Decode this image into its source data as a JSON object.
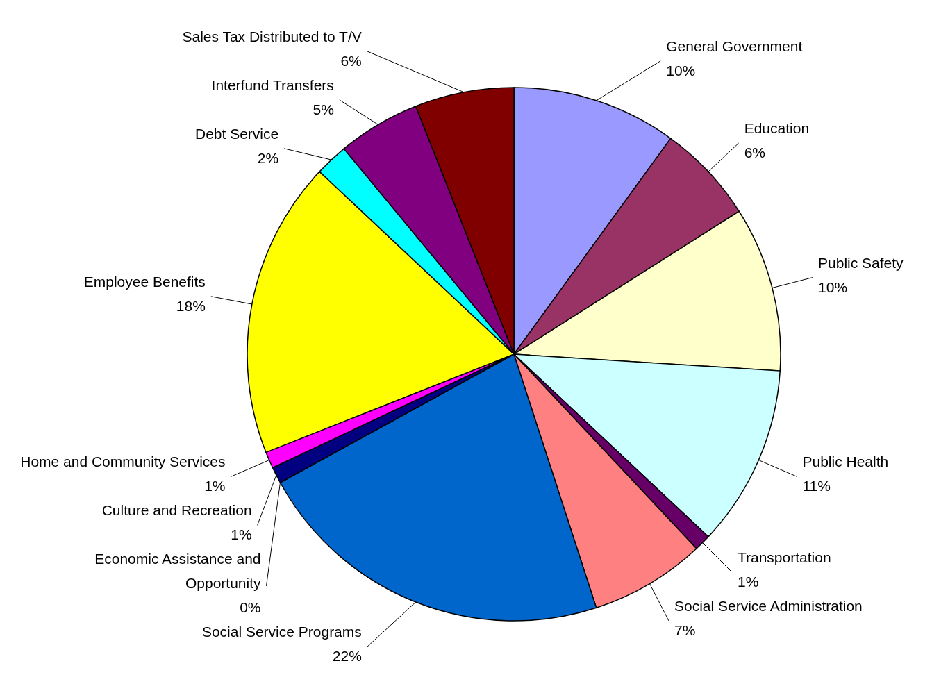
{
  "chart_data": {
    "type": "pie",
    "categories": [
      "General Government",
      "Education",
      "Public Safety",
      "Public Health",
      "Transportation",
      "Social Service Administration",
      "Social Service Programs",
      "Economic Assistance and Opportunity",
      "Culture and Recreation",
      "Home and Community Services",
      "Employee Benefits",
      "Debt Service",
      "Interfund Transfers",
      "Sales Tax Distributed to T/V"
    ],
    "values": [
      10,
      6,
      10,
      11,
      1,
      7,
      22,
      0,
      1,
      1,
      18,
      2,
      5,
      6
    ],
    "value_labels": [
      "10%",
      "6%",
      "10%",
      "11%",
      "1%",
      "7%",
      "22%",
      "0%",
      "1%",
      "1%",
      "18%",
      "2%",
      "5%",
      "6%"
    ],
    "colors": [
      "#9999ff",
      "#993366",
      "#ffffcc",
      "#ccffff",
      "#660066",
      "#ff8080",
      "#0066cc",
      "#ccccff",
      "#000080",
      "#ff00ff",
      "#ffff00",
      "#00ffff",
      "#800080",
      "#800000"
    ],
    "legend": false
  }
}
